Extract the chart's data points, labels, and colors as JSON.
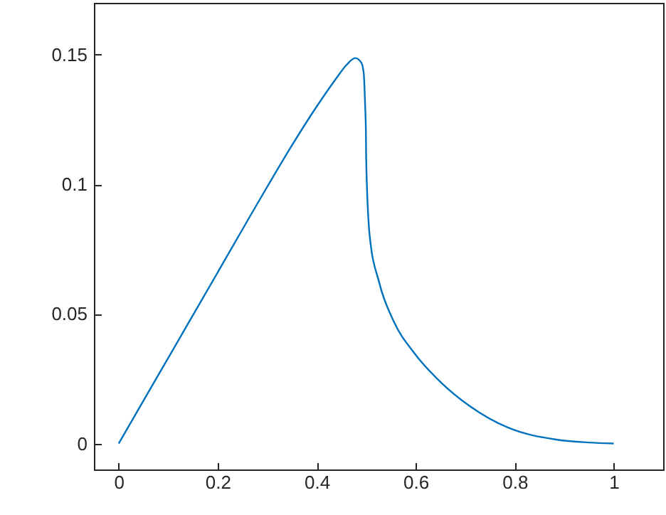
{
  "chart_data": {
    "type": "line",
    "x": [
      0,
      0.1,
      0.2,
      0.3,
      0.35,
      0.4,
      0.44,
      0.46,
      0.478,
      0.49,
      0.495,
      0.498,
      0.4995,
      0.5,
      0.507,
      0.5265,
      0.555,
      0.5985,
      0.651,
      0.709,
      0.786,
      0.882,
      0.95,
      1
    ],
    "series": [
      {
        "color": "#0072bd",
        "values": [
          0,
          0.033,
          0.066,
          0.099,
          0.115,
          0.13,
          0.141,
          0.146,
          0.1487,
          0.147,
          0.143,
          0.13,
          0.12,
          0.11,
          0.0804,
          0.062,
          0.0474,
          0.0346,
          0.0236,
          0.0145,
          0.0062,
          0.0016,
          0.0004,
          0
        ]
      }
    ],
    "xlim": [
      -0.05,
      1.1
    ],
    "ylim": [
      -0.01,
      0.17
    ],
    "xticks": [
      0,
      0.2,
      0.4,
      0.6,
      0.8,
      1
    ],
    "yticks": [
      0,
      0.05,
      {
        "value": 0.1,
        "label": "0.1"
      },
      0.15
    ],
    "grid": false,
    "marker": "none",
    "line_style": "solid"
  }
}
